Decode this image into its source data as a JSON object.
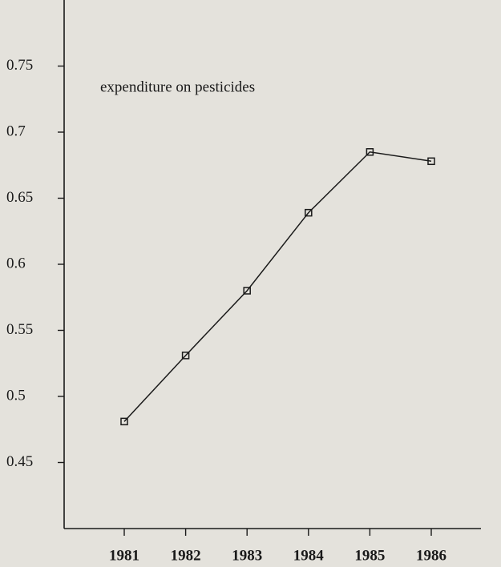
{
  "chart_data": {
    "type": "line",
    "annotation": "expenditure on pesticides",
    "categories": [
      "1981",
      "1982",
      "1983",
      "1984",
      "1985",
      "1986"
    ],
    "values": [
      0.481,
      0.531,
      0.58,
      0.639,
      0.685,
      0.678
    ],
    "color": "#1a1a1a",
    "ylim": [
      0.4,
      0.8
    ],
    "yticks": [
      0.45,
      0.5,
      0.55,
      0.6,
      0.65,
      0.7,
      0.75
    ]
  }
}
